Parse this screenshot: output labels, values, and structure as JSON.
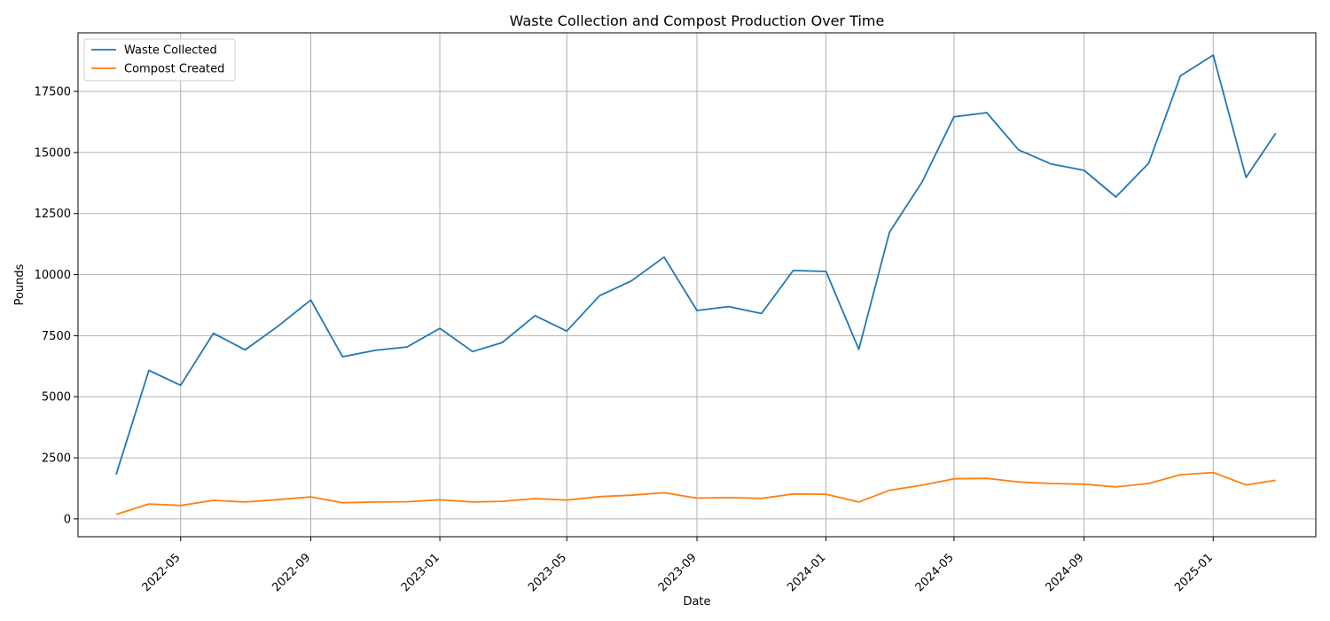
{
  "chart_data": {
    "type": "line",
    "title": "Waste Collection and Compost Production Over Time",
    "xlabel": "Date",
    "ylabel": "Pounds",
    "x": [
      "2022-03-01",
      "2022-04-01",
      "2022-05-01",
      "2022-06-01",
      "2022-07-01",
      "2022-08-01",
      "2022-09-01",
      "2022-10-01",
      "2022-11-01",
      "2022-12-01",
      "2023-01-01",
      "2023-02-01",
      "2023-03-01",
      "2023-04-01",
      "2023-05-01",
      "2023-06-01",
      "2023-07-01",
      "2023-08-01",
      "2023-09-01",
      "2023-10-01",
      "2023-11-01",
      "2023-12-01",
      "2024-01-01",
      "2024-02-01",
      "2024-03-01",
      "2024-04-01",
      "2024-05-01",
      "2024-06-01",
      "2024-07-01",
      "2024-08-01",
      "2024-09-01",
      "2024-10-01",
      "2024-11-01",
      "2024-12-01",
      "2025-01-01",
      "2025-02-01",
      "2025-03-01"
    ],
    "series": [
      {
        "name": "Waste Collected",
        "color": "#1f77b4",
        "values": [
          1820,
          6080,
          5470,
          7600,
          6920,
          7890,
          8960,
          6640,
          6900,
          7040,
          7800,
          6850,
          7220,
          8320,
          7690,
          9140,
          9740,
          10720,
          8530,
          8690,
          8410,
          10170,
          10130,
          6940,
          11740,
          13800,
          16460,
          16630,
          15110,
          14530,
          14270,
          13180,
          14560,
          18140,
          18990,
          13980,
          15790
        ]
      },
      {
        "name": "Compost Created",
        "color": "#ff7f0e",
        "values": [
          180,
          610,
          550,
          760,
          690,
          790,
          900,
          660,
          690,
          700,
          780,
          690,
          720,
          830,
          770,
          910,
          970,
          1070,
          850,
          870,
          840,
          1020,
          1010,
          690,
          1170,
          1380,
          1640,
          1660,
          1510,
          1450,
          1420,
          1310,
          1450,
          1810,
          1900,
          1390,
          1580
        ]
      }
    ],
    "ylim": [
      -730,
      19900
    ],
    "xlim": [
      "2022-01-24",
      "2025-04-08"
    ],
    "yticks": [
      "0",
      "2500",
      "5000",
      "7500",
      "10000",
      "12500",
      "15000",
      "17500"
    ],
    "xticks": [
      "2022-05",
      "2022-09",
      "2023-01",
      "2023-05",
      "2023-09",
      "2024-01",
      "2024-05",
      "2024-09",
      "2025-01"
    ],
    "grid": true,
    "legend_position": "upper-left"
  }
}
